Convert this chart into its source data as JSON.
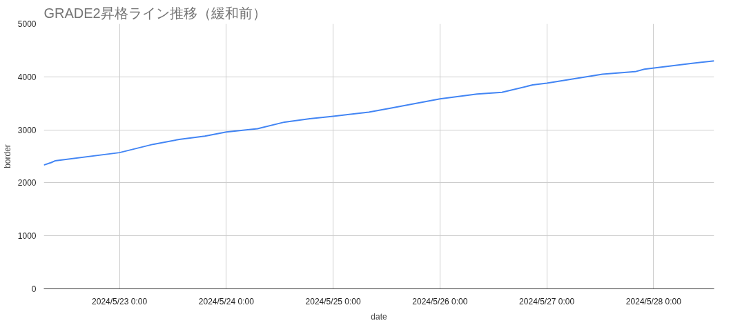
{
  "chart_data": {
    "type": "line",
    "title": "GRADE2昇格ライン推移（緩和前）",
    "xlabel": "date",
    "ylabel": "border",
    "x": [
      "2024-05-22T07:00",
      "2024-05-22T08:40",
      "2024-05-22T09:30",
      "2024-05-23T00:00",
      "2024-05-23T07:30",
      "2024-05-23T13:25",
      "2024-05-23T19:10",
      "2024-05-24T00:00",
      "2024-05-24T07:00",
      "2024-05-24T13:05",
      "2024-05-24T18:45",
      "2024-05-25T00:00",
      "2024-05-25T08:00",
      "2024-05-25T13:05",
      "2024-05-26T00:00",
      "2024-05-26T08:20",
      "2024-05-26T13:55",
      "2024-05-26T20:50",
      "2024-05-27T00:00",
      "2024-05-27T12:30",
      "2024-05-27T19:50",
      "2024-05-27T21:55",
      "2024-05-28T08:20",
      "2024-05-28T13:35"
    ],
    "series": [
      {
        "color": "#4285f4",
        "values": [
          2336,
          2383,
          2414,
          2570,
          2726,
          2819,
          2882,
          2960,
          3022,
          3146,
          3209,
          3255,
          3333,
          3411,
          3583,
          3676,
          3707,
          3847,
          3879,
          4050,
          4097,
          4143,
          4252,
          4299
        ]
      }
    ],
    "xlim": [
      "2024-05-22T07:00",
      "2024-05-28T13:35"
    ],
    "xticks": [
      {
        "value": "2024-05-23T00:00",
        "label": "2024/5/23 0:00"
      },
      {
        "value": "2024-05-24T00:00",
        "label": "2024/5/24 0:00"
      },
      {
        "value": "2024-05-25T00:00",
        "label": "2024/5/25 0:00"
      },
      {
        "value": "2024-05-26T00:00",
        "label": "2024/5/26 0:00"
      },
      {
        "value": "2024-05-27T00:00",
        "label": "2024/5/27 0:00"
      },
      {
        "value": "2024-05-28T00:00",
        "label": "2024/5/28 0:00"
      }
    ],
    "ylim": [
      0,
      5000
    ],
    "yticks": [
      0,
      1000,
      2000,
      3000,
      4000,
      5000
    ],
    "grid": true
  }
}
